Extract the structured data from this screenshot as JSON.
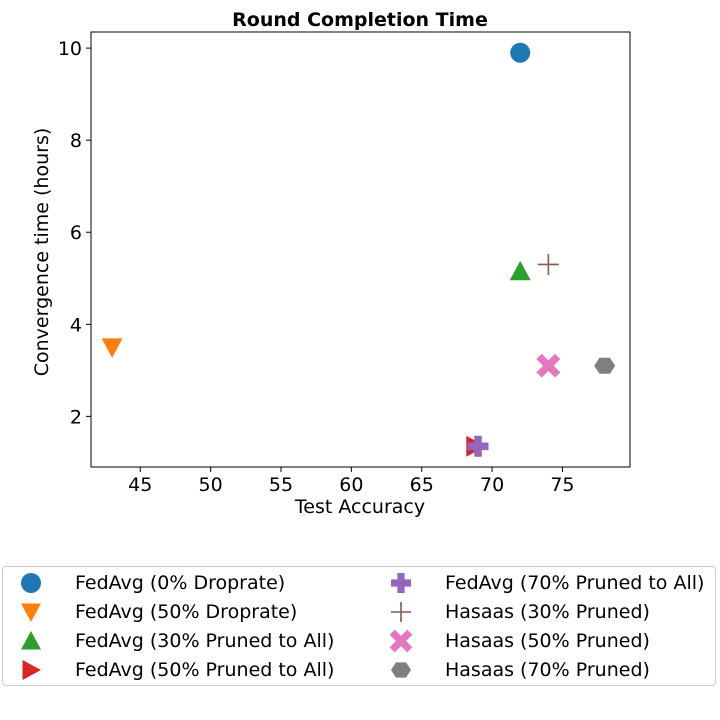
{
  "chart_data": {
    "type": "scatter",
    "title": "Round Completion Time",
    "xlabel": "Test Accuracy",
    "ylabel": "Convergence time (hours)",
    "xlim": [
      41.5,
      79.8
    ],
    "ylim": [
      0.9,
      10.35
    ],
    "xticks": [
      45,
      50,
      55,
      60,
      65,
      70,
      75
    ],
    "yticks": [
      2,
      4,
      6,
      8,
      10
    ],
    "legend_position": "below plot, two columns",
    "series": [
      {
        "name": "FedAvg (0% Droprate)",
        "color": "#1f77b4",
        "marker": "circle",
        "x": 72,
        "y": 9.9
      },
      {
        "name": "FedAvg (50% Droprate)",
        "color": "#ff7f0e",
        "marker": "triangle-down",
        "x": 43,
        "y": 3.5
      },
      {
        "name": "FedAvg (30% Pruned to All)",
        "color": "#2ca02c",
        "marker": "triangle-up",
        "x": 72,
        "y": 5.15
      },
      {
        "name": "FedAvg (50% Pruned to All)",
        "color": "#d62728",
        "marker": "triangle-right",
        "x": 68.8,
        "y": 1.35
      },
      {
        "name": "FedAvg (70% Pruned to All)",
        "color": "#9467bd",
        "marker": "plus-filled",
        "x": 69,
        "y": 1.35
      },
      {
        "name": "Hasaas (30% Pruned)",
        "color": "#8c564b",
        "marker": "plus",
        "x": 74,
        "y": 5.3
      },
      {
        "name": "Hasaas (50% Pruned)",
        "color": "#e377c2",
        "marker": "x-filled",
        "x": 74,
        "y": 3.1
      },
      {
        "name": "Hasaas (70% Pruned)",
        "color": "#7f7f7f",
        "marker": "hexagon",
        "x": 78,
        "y": 3.1
      }
    ]
  }
}
